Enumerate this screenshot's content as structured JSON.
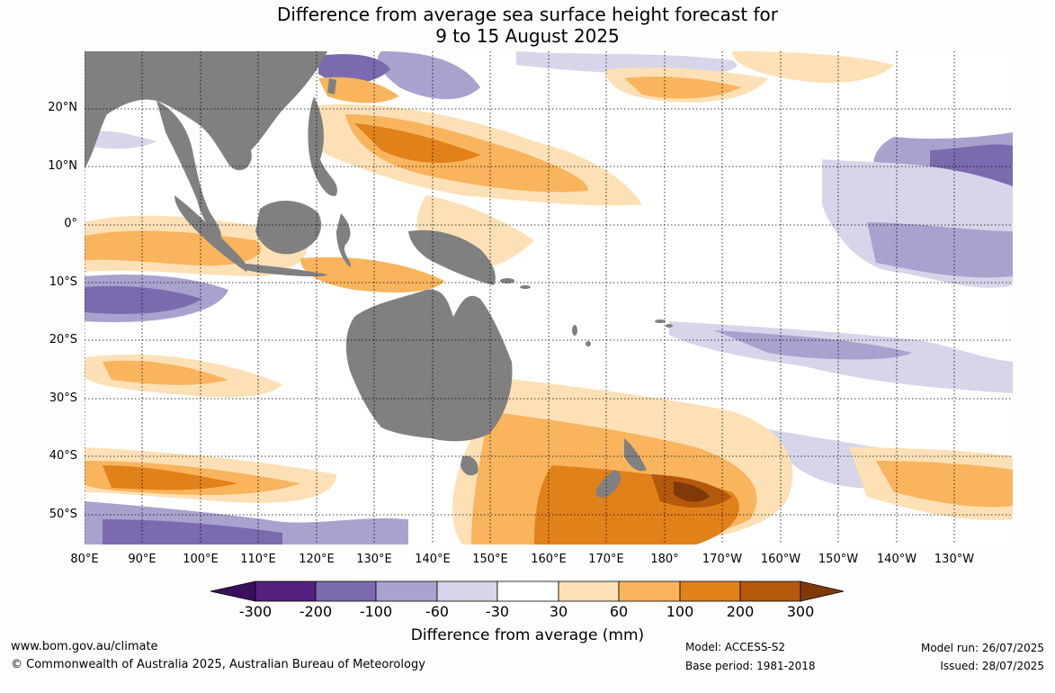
{
  "title": {
    "line1": "Difference from average sea surface height forecast for",
    "line2": "9 to 15 August 2025"
  },
  "map": {
    "lat_labels": [
      "20°N",
      "10°N",
      "0°",
      "10°S",
      "20°S",
      "30°S",
      "40°S",
      "50°S"
    ],
    "lon_labels": [
      "80°E",
      "90°E",
      "100°E",
      "110°E",
      "120°E",
      "130°E",
      "140°E",
      "150°E",
      "160°E",
      "170°E",
      "180°",
      "170°W",
      "160°W",
      "150°W",
      "140°W",
      "130°W"
    ],
    "land_color": "#808080",
    "grid": "dotted"
  },
  "legend": {
    "ticks": [
      "-300",
      "-200",
      "-100",
      "-60",
      "-30",
      "30",
      "60",
      "100",
      "200",
      "300"
    ],
    "title": "Difference from average (mm)",
    "colors": [
      "#3b0f5e",
      "#55207f",
      "#7b6bae",
      "#a9a2cf",
      "#d6d5ea",
      "#ffffff",
      "#fde0b5",
      "#f9b45d",
      "#e1811a",
      "#b4580c",
      "#7f3a07"
    ]
  },
  "footer": {
    "website": "www.bom.gov.au/climate",
    "copyright": "© Commonwealth of Australia 2025, Australian Bureau of Meteorology",
    "model": "Model: ACCESS-S2",
    "base_period": "Base period: 1981-2018",
    "model_run": "Model run: 26/07/2025",
    "issued": "Issued: 28/07/2025"
  }
}
